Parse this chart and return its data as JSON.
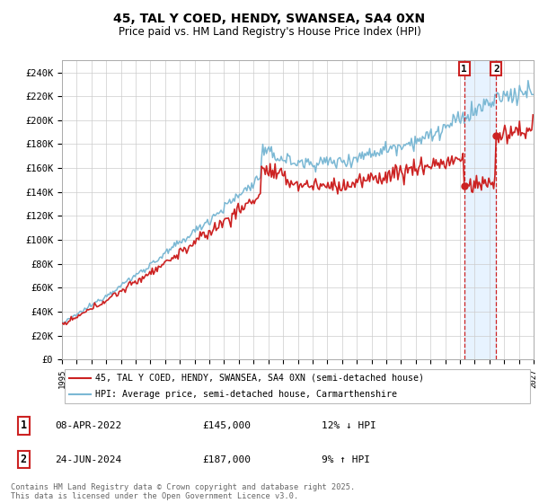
{
  "title": "45, TAL Y COED, HENDY, SWANSEA, SA4 0XN",
  "subtitle": "Price paid vs. HM Land Registry's House Price Index (HPI)",
  "ylim": [
    0,
    250000
  ],
  "yticks": [
    0,
    20000,
    40000,
    60000,
    80000,
    100000,
    120000,
    140000,
    160000,
    180000,
    200000,
    220000,
    240000
  ],
  "ytick_labels": [
    "£0",
    "£20K",
    "£40K",
    "£60K",
    "£80K",
    "£100K",
    "£120K",
    "£140K",
    "£160K",
    "£180K",
    "£200K",
    "£220K",
    "£240K"
  ],
  "hpi_color": "#7bb8d4",
  "price_color": "#cc2222",
  "marker1_year": 2022.29,
  "marker1_price": 145000,
  "marker1_label": "08-APR-2022",
  "marker1_pct": "12% ↓ HPI",
  "marker2_year": 2024.49,
  "marker2_price": 187000,
  "marker2_label": "24-JUN-2024",
  "marker2_pct": "9% ↑ HPI",
  "legend_line1": "45, TAL Y COED, HENDY, SWANSEA, SA4 0XN (semi-detached house)",
  "legend_line2": "HPI: Average price, semi-detached house, Carmarthenshire",
  "footer": "Contains HM Land Registry data © Crown copyright and database right 2025.\nThis data is licensed under the Open Government Licence v3.0.",
  "background_color": "#ffffff",
  "grid_color": "#cccccc",
  "shade_color": "#ddeeff",
  "xmin": 1995,
  "xmax": 2027
}
